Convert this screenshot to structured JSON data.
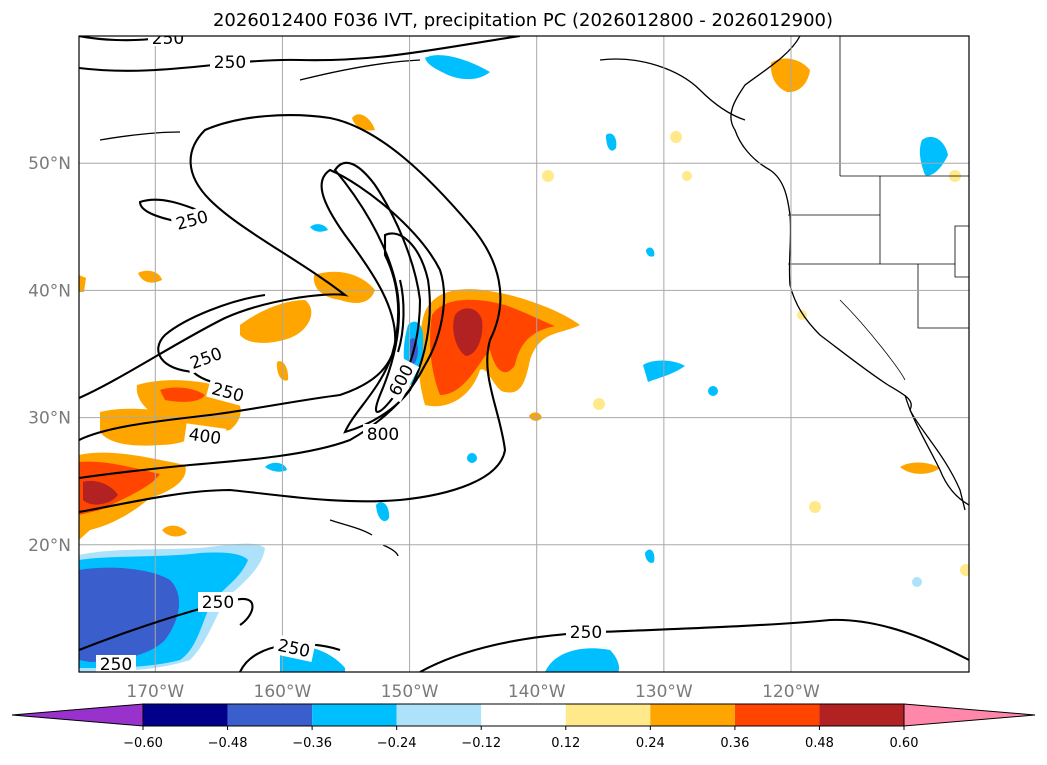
{
  "chart_data": {
    "type": "heatmap",
    "title": "2026012400 F036 IVT, precipitation PC (2026012800 - 2026012900)",
    "x_ticks": [
      "170°W",
      "160°W",
      "150°W",
      "140°W",
      "130°W",
      "120°W"
    ],
    "x_tick_values": [
      -170,
      -160,
      -150,
      -140,
      -130,
      -120
    ],
    "y_ticks": [
      "50°N",
      "40°N",
      "30°N",
      "20°N"
    ],
    "y_tick_values": [
      50,
      40,
      30,
      20
    ],
    "xlim": [
      -176,
      -106
    ],
    "ylim": [
      10,
      60
    ],
    "grid": true,
    "colorbar": {
      "tick_labels": [
        "−0.60",
        "−0.48",
        "−0.36",
        "−0.24",
        "−0.12",
        "0.12",
        "0.24",
        "0.36",
        "0.48",
        "0.60"
      ],
      "colors": [
        "#9932CC",
        "#00008B",
        "#3A5FCD",
        "#00BFFF",
        "#ADE2FA",
        "#FFFFFF",
        "#FFE98A",
        "#FFA500",
        "#FF4500",
        "#B22222",
        "#FF88AA"
      ],
      "extend": "both"
    },
    "contour_levels": [
      250,
      400,
      600,
      800
    ],
    "contour_labels": [
      "250",
      "250",
      "250",
      "250",
      "250",
      "250",
      "250",
      "250",
      "400",
      "600",
      "800"
    ]
  }
}
